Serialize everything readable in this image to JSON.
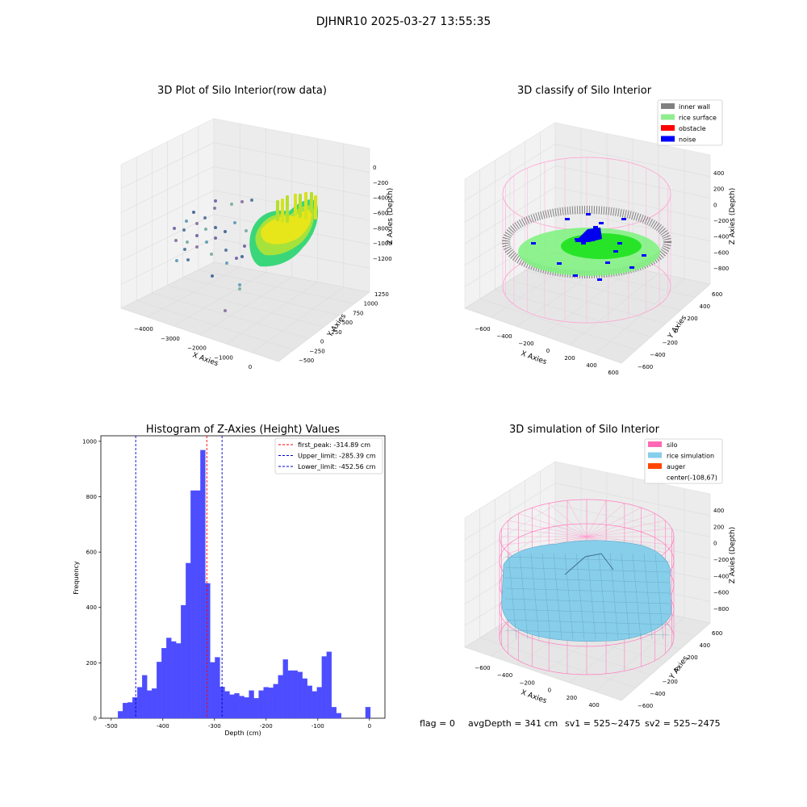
{
  "suptitle": "DJHNR10 2025-03-27 13:55:35",
  "panels": {
    "raw": {
      "title": "3D Plot of Silo Interior(row data)",
      "xlabel": "X Axies",
      "ylabel": "Y Axies",
      "zlabel": "Z Axies (Depth)",
      "xticks": [
        "−4000",
        "−3000",
        "−2000",
        "−1000",
        "0"
      ],
      "yticks": [
        "−500",
        "−250",
        "0",
        "250",
        "500",
        "750",
        "1000",
        "1250"
      ],
      "zticks": [
        "0",
        "−200",
        "−400",
        "−600",
        "−800",
        "−1000",
        "−1200"
      ]
    },
    "classify": {
      "title": "3D classify of Silo Interior",
      "xlabel": "X Axies",
      "ylabel": "Y Axies",
      "zlabel": "Z Axies (Depth)",
      "xticks": [
        "−600",
        "−400",
        "−200",
        "0",
        "200",
        "400",
        "600"
      ],
      "yticks": [
        "−600",
        "−400",
        "−200",
        "0",
        "200",
        "400",
        "600"
      ],
      "zticks": [
        "400",
        "200",
        "0",
        "−200",
        "−400",
        "−600",
        "−800"
      ],
      "legend": [
        {
          "label": "inner wall",
          "color": "#808080"
        },
        {
          "label": "rice surface",
          "color": "#90ee90"
        },
        {
          "label": "obstacle",
          "color": "#ff0000"
        },
        {
          "label": "noise",
          "color": "#0000ff"
        }
      ]
    },
    "simulation": {
      "title": "3D simulation of Silo Interior",
      "xlabel": "X Axies",
      "ylabel": "Y Axies",
      "zlabel": "Z Axies (Depth)",
      "xticks": [
        "−600",
        "−400",
        "−200",
        "0",
        "200",
        "400"
      ],
      "yticks": [
        "−600",
        "−400",
        "−200",
        "0",
        "200",
        "400",
        "600"
      ],
      "zticks": [
        "400",
        "200",
        "0",
        "−200",
        "−400",
        "−600",
        "−800"
      ],
      "legend": [
        {
          "label": "silo",
          "color": "#ff69b4"
        },
        {
          "label": "rice simulation",
          "color": "#87ceeb"
        },
        {
          "label": "auger",
          "color": "#ff4500"
        },
        {
          "label": "center(-108,67)",
          "color": ""
        }
      ]
    }
  },
  "footer": {
    "flag": "flag = 0",
    "avg": "avgDepth = 341 cm",
    "sv1": "sv1 = 525~2475",
    "sv2": "sv2 = 525~2475"
  },
  "colors": {
    "hist_bar": "#4d4dff",
    "hist_edge": "#0000ff",
    "peak_line": "#ff0000",
    "limit_line": "#0000cc",
    "pane": "#f2f2f2",
    "grid": "#dcdcdc"
  },
  "chart_data": [
    {
      "type": "bar",
      "title": "Histogram of Z-Axies (Height) Values",
      "xlabel": "Depth (cm)",
      "ylabel": "Frequency",
      "xlim": [
        -520,
        30
      ],
      "ylim": [
        0,
        1020
      ],
      "xticks": [
        -500,
        -400,
        -300,
        -200,
        -100,
        0
      ],
      "yticks": [
        0,
        200,
        400,
        600,
        800,
        1000
      ],
      "bin_width": 9.4,
      "bin_starts": [
        -487,
        -477.6,
        -468.2,
        -458.8,
        -449.4,
        -440,
        -430.6,
        -421.2,
        -411.8,
        -402.4,
        -393,
        -383.6,
        -374.2,
        -364.8,
        -355.4,
        -346,
        -336.6,
        -327.2,
        -317.8,
        -308.4,
        -299,
        -289.6,
        -280.2,
        -270.8,
        -261.4,
        -252,
        -242.6,
        -233.2,
        -223.8,
        -214.4,
        -205,
        -195.6,
        -186.2,
        -176.8,
        -167.4,
        -158,
        -148.6,
        -139.2,
        -129.8,
        -120.4,
        -111,
        -101.6,
        -92.2,
        -82.8,
        -73.4,
        -64,
        -54.6,
        -45.2,
        -35.8,
        -26.4,
        -17,
        -7.6
      ],
      "values": [
        25,
        55,
        57,
        75,
        112,
        155,
        100,
        107,
        203,
        253,
        290,
        277,
        270,
        408,
        560,
        822,
        822,
        968,
        487,
        202,
        220,
        113,
        97,
        85,
        90,
        80,
        75,
        100,
        72,
        100,
        112,
        110,
        123,
        155,
        212,
        172,
        172,
        167,
        143,
        117,
        97,
        112,
        223,
        240,
        40,
        18,
        0,
        0,
        0,
        0,
        0,
        40
      ],
      "lines": [
        {
          "label": "first_peak: -314.89 cm",
          "x": -314.89,
          "color": "#ff0000"
        },
        {
          "label": "Upper_limit: -285.39 cm",
          "x": -285.39,
          "color": "#0000cc"
        },
        {
          "label": "Lower_limit: -452.56 cm",
          "x": -452.56,
          "color": "#0000cc"
        }
      ]
    }
  ]
}
